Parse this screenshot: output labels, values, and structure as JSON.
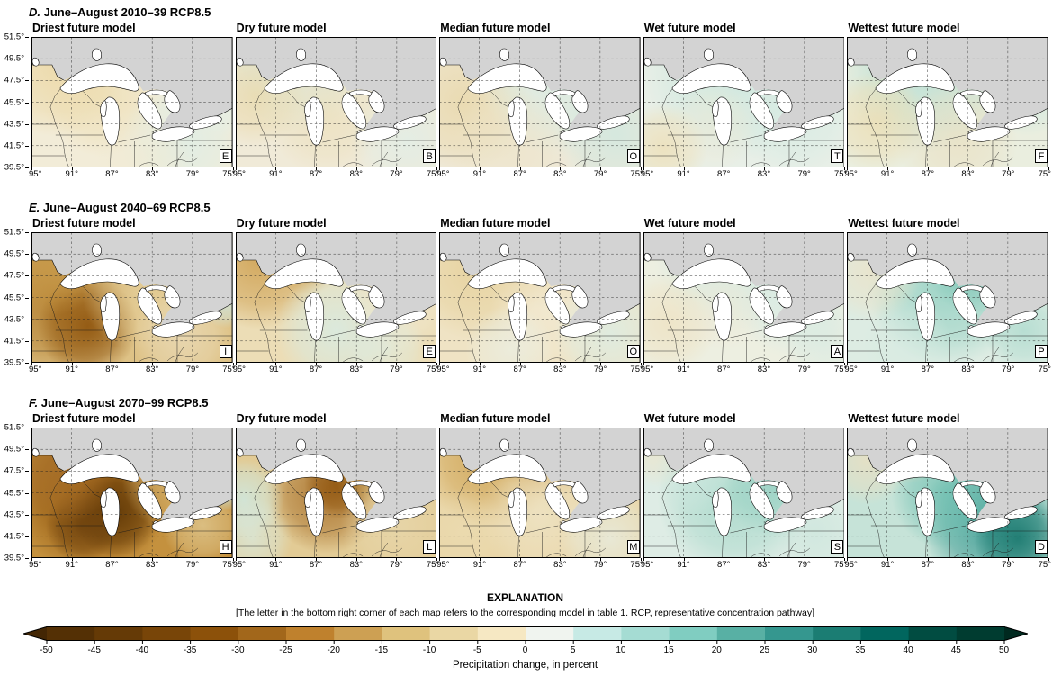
{
  "axes": {
    "lat_ticks": [
      "51.5°",
      "49.5°",
      "47.5°",
      "45.5°",
      "43.5°",
      "41.5°",
      "39.5°"
    ],
    "lon_ticks": [
      "95°",
      "91°",
      "87°",
      "83°",
      "79°",
      "75°"
    ]
  },
  "rows": [
    {
      "label": "D.",
      "title": "June–August 2010–39 RCP8.5",
      "panels": [
        {
          "column": "Driest future model",
          "letter": "E",
          "base": "#f2ecd8",
          "blobs": [
            {
              "x": 0.12,
              "y": 0.22,
              "r": 0.35,
              "c": "#ecd9a8",
              "o": 0.9
            },
            {
              "x": 0.35,
              "y": 0.45,
              "r": 0.3,
              "c": "#eddcae",
              "o": 0.7
            },
            {
              "x": 0.75,
              "y": 0.8,
              "r": 0.3,
              "c": "#ddeee7",
              "o": 0.8
            },
            {
              "x": 0.95,
              "y": 0.45,
              "r": 0.2,
              "c": "#e2f0ea",
              "o": 0.7
            },
            {
              "x": 0.55,
              "y": 0.9,
              "r": 0.25,
              "c": "#f0ead3",
              "o": 0.6
            }
          ]
        },
        {
          "column": "Dry future model",
          "letter": "B",
          "base": "#f0ead8",
          "blobs": [
            {
              "x": 0.3,
              "y": 0.12,
              "r": 0.4,
              "c": "#d4e9e1",
              "o": 0.9
            },
            {
              "x": 0.1,
              "y": 0.45,
              "r": 0.25,
              "c": "#ead9ab",
              "o": 0.8
            },
            {
              "x": 0.45,
              "y": 0.6,
              "r": 0.3,
              "c": "#ecdfba",
              "o": 0.7
            },
            {
              "x": 0.85,
              "y": 0.8,
              "r": 0.28,
              "c": "#e0eee8",
              "o": 0.75
            },
            {
              "x": 0.7,
              "y": 0.35,
              "r": 0.25,
              "c": "#eee8cf",
              "o": 0.5
            }
          ]
        },
        {
          "column": "Median future model",
          "letter": "O",
          "base": "#efe9d8",
          "blobs": [
            {
              "x": 0.12,
              "y": 0.5,
              "r": 0.35,
              "c": "#e9d8ab",
              "o": 0.85
            },
            {
              "x": 0.6,
              "y": 0.3,
              "r": 0.4,
              "c": "#d8ece5",
              "o": 0.85
            },
            {
              "x": 0.88,
              "y": 0.75,
              "r": 0.3,
              "c": "#cfe8e0",
              "o": 0.8
            },
            {
              "x": 0.35,
              "y": 0.85,
              "r": 0.3,
              "c": "#ece3c6",
              "o": 0.6
            }
          ]
        },
        {
          "column": "Wet future model",
          "letter": "T",
          "base": "#e8efe7",
          "blobs": [
            {
              "x": 0.45,
              "y": 0.25,
              "r": 0.45,
              "c": "#cde7de",
              "o": 0.9
            },
            {
              "x": 0.1,
              "y": 0.85,
              "r": 0.22,
              "c": "#eedfb6",
              "o": 0.8
            },
            {
              "x": 0.75,
              "y": 0.6,
              "r": 0.3,
              "c": "#d7ebe3",
              "o": 0.8
            },
            {
              "x": 0.35,
              "y": 0.7,
              "r": 0.22,
              "c": "#efe9d3",
              "o": 0.5
            }
          ]
        },
        {
          "column": "Wettest future model",
          "letter": "F",
          "base": "#eaeedf",
          "blobs": [
            {
              "x": 0.4,
              "y": 0.2,
              "r": 0.45,
              "c": "#badfd4",
              "o": 0.9
            },
            {
              "x": 0.15,
              "y": 0.65,
              "r": 0.25,
              "c": "#ecddb2",
              "o": 0.8
            },
            {
              "x": 0.55,
              "y": 0.8,
              "r": 0.3,
              "c": "#eadfc0",
              "o": 0.7
            },
            {
              "x": 0.9,
              "y": 0.45,
              "r": 0.2,
              "c": "#cfe8e0",
              "o": 0.7
            }
          ]
        }
      ]
    },
    {
      "label": "E.",
      "title": "June–August 2040–69 RCP8.5",
      "panels": [
        {
          "column": "Driest future model",
          "letter": "I",
          "base": "#dec286",
          "blobs": [
            {
              "x": 0.12,
              "y": 0.5,
              "r": 0.4,
              "c": "#b07b2b",
              "o": 0.9
            },
            {
              "x": 0.28,
              "y": 0.72,
              "r": 0.25,
              "c": "#8c510a",
              "o": 0.85
            },
            {
              "x": 0.1,
              "y": 0.25,
              "r": 0.25,
              "c": "#c89a49",
              "o": 0.8
            },
            {
              "x": 0.55,
              "y": 0.45,
              "r": 0.3,
              "c": "#e5cf9a",
              "o": 0.7
            },
            {
              "x": 0.75,
              "y": 0.8,
              "r": 0.25,
              "c": "#ecdfc0",
              "o": 0.7
            },
            {
              "x": 0.97,
              "y": 0.5,
              "r": 0.15,
              "c": "#cfe7e0",
              "o": 0.9
            }
          ]
        },
        {
          "column": "Dry future model",
          "letter": "E",
          "base": "#ecddb6",
          "blobs": [
            {
              "x": 0.12,
              "y": 0.2,
              "r": 0.35,
              "c": "#cfa254",
              "o": 0.9
            },
            {
              "x": 0.35,
              "y": 0.08,
              "r": 0.25,
              "c": "#c3913d",
              "o": 0.8
            },
            {
              "x": 0.5,
              "y": 0.75,
              "r": 0.3,
              "c": "#d8ebe3",
              "o": 0.85
            },
            {
              "x": 0.82,
              "y": 0.5,
              "r": 0.28,
              "c": "#f0e9d2",
              "o": 0.7
            },
            {
              "x": 0.75,
              "y": 0.9,
              "r": 0.2,
              "c": "#ddeee6",
              "o": 0.6
            }
          ]
        },
        {
          "column": "Median future model",
          "letter": "O",
          "base": "#efe3c4",
          "blobs": [
            {
              "x": 0.18,
              "y": 0.28,
              "r": 0.35,
              "c": "#e6d19c",
              "o": 0.85
            },
            {
              "x": 0.5,
              "y": 0.12,
              "r": 0.3,
              "c": "#e4cd94",
              "o": 0.7
            },
            {
              "x": 0.55,
              "y": 0.6,
              "r": 0.3,
              "c": "#f2ead3",
              "o": 0.7
            },
            {
              "x": 0.85,
              "y": 0.78,
              "r": 0.28,
              "c": "#dcede5",
              "o": 0.8
            },
            {
              "x": 0.35,
              "y": 0.9,
              "r": 0.22,
              "c": "#e9f1ea",
              "o": 0.6
            }
          ]
        },
        {
          "column": "Wet future model",
          "letter": "A",
          "base": "#edefe1",
          "blobs": [
            {
              "x": 0.45,
              "y": 0.18,
              "r": 0.4,
              "c": "#d3e9e1",
              "o": 0.85
            },
            {
              "x": 0.12,
              "y": 0.7,
              "r": 0.25,
              "c": "#eee2c2",
              "o": 0.8
            },
            {
              "x": 0.75,
              "y": 0.5,
              "r": 0.3,
              "c": "#d8ebe4",
              "o": 0.8
            },
            {
              "x": 0.4,
              "y": 0.6,
              "r": 0.2,
              "c": "#f0e9d5",
              "o": 0.5
            },
            {
              "x": 0.9,
              "y": 0.85,
              "r": 0.2,
              "c": "#d5eae2",
              "o": 0.6
            }
          ]
        },
        {
          "column": "Wettest future model",
          "letter": "P",
          "base": "#ddece3",
          "blobs": [
            {
              "x": 0.5,
              "y": 0.4,
              "r": 0.4,
              "c": "#96d1c3",
              "o": 0.9
            },
            {
              "x": 0.65,
              "y": 0.25,
              "r": 0.25,
              "c": "#82c7b8",
              "o": 0.8
            },
            {
              "x": 0.12,
              "y": 0.3,
              "r": 0.25,
              "c": "#ebe3c9",
              "o": 0.8
            },
            {
              "x": 0.3,
              "y": 0.85,
              "r": 0.22,
              "c": "#d5eae1",
              "o": 0.6
            },
            {
              "x": 0.88,
              "y": 0.75,
              "r": 0.2,
              "c": "#a7d8cb",
              "o": 0.7
            }
          ]
        }
      ]
    },
    {
      "label": "F.",
      "title": "June–August 2070–99 RCP8.5",
      "panels": [
        {
          "column": "Driest future model",
          "letter": "H",
          "base": "#c4913e",
          "blobs": [
            {
              "x": 0.3,
              "y": 0.5,
              "r": 0.4,
              "c": "#8c510a",
              "o": 0.9
            },
            {
              "x": 0.42,
              "y": 0.65,
              "r": 0.22,
              "c": "#5f3807",
              "o": 0.9
            },
            {
              "x": 0.25,
              "y": 0.75,
              "r": 0.18,
              "c": "#6b400d",
              "o": 0.8
            },
            {
              "x": 0.15,
              "y": 0.3,
              "r": 0.28,
              "c": "#a8702a",
              "o": 0.8
            },
            {
              "x": 0.7,
              "y": 0.4,
              "r": 0.25,
              "c": "#d8b671",
              "o": 0.8
            },
            {
              "x": 0.85,
              "y": 0.75,
              "r": 0.2,
              "c": "#e4d19e",
              "o": 0.7
            },
            {
              "x": 0.97,
              "y": 0.45,
              "r": 0.12,
              "c": "#cfe7e0",
              "o": 0.9
            }
          ]
        },
        {
          "column": "Dry future model",
          "letter": "L",
          "base": "#e2cb95",
          "blobs": [
            {
              "x": 0.45,
              "y": 0.5,
              "r": 0.3,
              "c": "#a8702a",
              "o": 0.9
            },
            {
              "x": 0.52,
              "y": 0.42,
              "r": 0.18,
              "c": "#8c510a",
              "o": 0.85
            },
            {
              "x": 0.04,
              "y": 0.55,
              "r": 0.2,
              "c": "#cfe8e0",
              "o": 0.85
            },
            {
              "x": 0.08,
              "y": 0.85,
              "r": 0.2,
              "c": "#d8ece4",
              "o": 0.7
            },
            {
              "x": 0.75,
              "y": 0.25,
              "r": 0.28,
              "c": "#d2ae62",
              "o": 0.75
            },
            {
              "x": 0.8,
              "y": 0.75,
              "r": 0.28,
              "c": "#e9d9af",
              "o": 0.7
            }
          ]
        },
        {
          "column": "Median future model",
          "letter": "M",
          "base": "#e9d5a6",
          "blobs": [
            {
              "x": 0.25,
              "y": 0.22,
              "r": 0.35,
              "c": "#cda150",
              "o": 0.85
            },
            {
              "x": 0.55,
              "y": 0.12,
              "r": 0.28,
              "c": "#c9994a",
              "o": 0.75
            },
            {
              "x": 0.5,
              "y": 0.68,
              "r": 0.3,
              "c": "#eee4c6",
              "o": 0.8
            },
            {
              "x": 0.85,
              "y": 0.85,
              "r": 0.25,
              "c": "#e7f0e9",
              "o": 0.7
            },
            {
              "x": 0.12,
              "y": 0.8,
              "r": 0.22,
              "c": "#ecddb4",
              "o": 0.6
            }
          ]
        },
        {
          "column": "Wet future model",
          "letter": "S",
          "base": "#deece5",
          "blobs": [
            {
              "x": 0.45,
              "y": 0.55,
              "r": 0.38,
              "c": "#a9d9cb",
              "o": 0.9
            },
            {
              "x": 0.65,
              "y": 0.45,
              "r": 0.25,
              "c": "#96d0c2",
              "o": 0.8
            },
            {
              "x": 0.08,
              "y": 0.12,
              "r": 0.22,
              "c": "#ece4ca",
              "o": 0.8
            },
            {
              "x": 0.85,
              "y": 0.8,
              "r": 0.2,
              "c": "#cbe6dc",
              "o": 0.7
            },
            {
              "x": 0.25,
              "y": 0.35,
              "r": 0.2,
              "c": "#cfe8e0",
              "o": 0.6
            }
          ]
        },
        {
          "column": "Wettest future model",
          "letter": "D",
          "base": "#c6e3d8",
          "blobs": [
            {
              "x": 0.72,
              "y": 0.72,
              "r": 0.35,
              "c": "#35978f",
              "o": 0.9
            },
            {
              "x": 0.85,
              "y": 0.85,
              "r": 0.22,
              "c": "#16756b",
              "o": 0.85
            },
            {
              "x": 0.5,
              "y": 0.5,
              "r": 0.28,
              "c": "#6fc0b1",
              "o": 0.8
            },
            {
              "x": 0.1,
              "y": 0.25,
              "r": 0.22,
              "c": "#e9dfc2",
              "o": 0.85
            },
            {
              "x": 0.3,
              "y": 0.12,
              "r": 0.2,
              "c": "#ded3ae",
              "o": 0.7
            }
          ]
        }
      ]
    }
  ],
  "explanation": {
    "title": "EXPLANATION",
    "note": "[The letter in the bottom right corner of each map refers to the corresponding model in table 1. RCP, representative concentration pathway]"
  },
  "colorbar": {
    "label": "Precipitation change, in percent",
    "ticks": [
      "-50",
      "-45",
      "-40",
      "-35",
      "-30",
      "-25",
      "-20",
      "-15",
      "-10",
      "-5",
      "0",
      "5",
      "10",
      "15",
      "20",
      "25",
      "30",
      "35",
      "40",
      "45",
      "50"
    ],
    "segments": [
      "#543005",
      "#653a06",
      "#784508",
      "#8c510a",
      "#a2671b",
      "#bf812d",
      "#cda053",
      "#dfc27d",
      "#ead7a4",
      "#f6e8c3",
      "#f0f4ef",
      "#c7eae5",
      "#a5dcd3",
      "#80cdc1",
      "#58b0a4",
      "#35978f",
      "#1b7d73",
      "#01665e",
      "#014c41",
      "#003c30"
    ],
    "left_cap": "#432604",
    "right_cap": "#00291f"
  }
}
